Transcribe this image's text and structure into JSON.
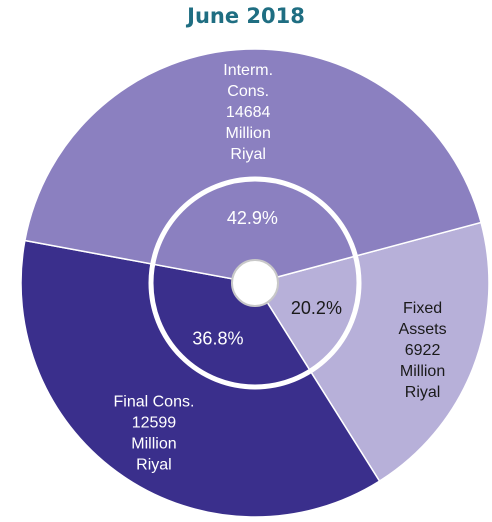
{
  "chart_data": {
    "type": "pie",
    "title": "June 2018",
    "slices": [
      {
        "label": [
          "Fixed",
          "Assets",
          "6922",
          "Million",
          "Riyal"
        ],
        "value": 6922,
        "percent": "20.2%",
        "color": "#b7b0d9"
      },
      {
        "label": [
          "Final Cons.",
          "12599",
          "Million",
          "Riyal"
        ],
        "value": 12599,
        "percent": "36.8%",
        "color": "#3a2f8c"
      },
      {
        "label": [
          "Interm.",
          "Cons.",
          "14684",
          "Million",
          "Riyal"
        ],
        "value": 14684,
        "percent": "42.9%",
        "color": "#8b80c0"
      }
    ]
  },
  "colors": {
    "title": "#1f6e82",
    "ring": "#ffffff",
    "hub": "#ffffff",
    "hub_border": "#c8c8c8",
    "label_dark": "#1a1a1a",
    "label_light": "#ffffff"
  }
}
